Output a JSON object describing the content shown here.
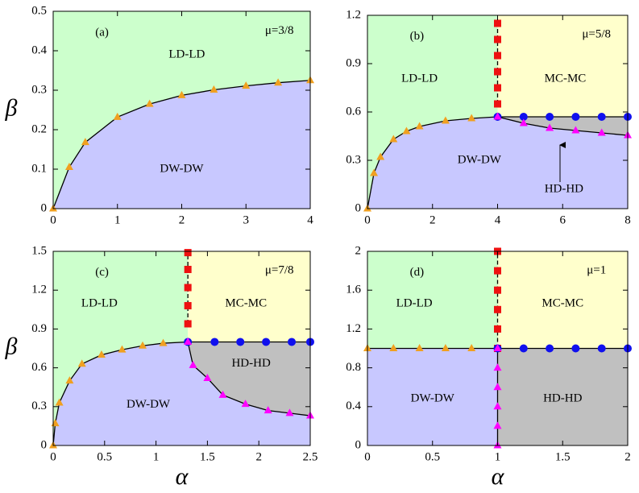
{
  "chart_data": [
    {
      "type": "phase",
      "panel_label": "(a)",
      "annotation": "μ=3/8",
      "ylabel": "β",
      "line_color": "#000000",
      "xlim": [
        0,
        4
      ],
      "ylim": [
        0,
        0.5
      ],
      "xticks": [
        0,
        1,
        2,
        3,
        4
      ],
      "yticks": [
        0,
        0.1,
        0.2,
        0.3,
        0.4,
        0.5
      ],
      "regions": [
        {
          "label": "LD-LD",
          "color": "#ccffcc",
          "x": [
            0,
            0,
            4,
            4
          ],
          "y": [
            0,
            0.5,
            0.5,
            0
          ]
        },
        {
          "label": "DW-DW",
          "color": "#c8c8ff",
          "x": [
            0,
            0.25,
            0.5,
            1,
            1.5,
            2,
            2.5,
            3,
            3.5,
            4,
            4
          ],
          "y": [
            0,
            0.105,
            0.168,
            0.232,
            0.265,
            0.287,
            0.301,
            0.311,
            0.319,
            0.325,
            0
          ]
        }
      ],
      "boundaries": [
        {
          "marker": "triangle",
          "color": "#f0a020",
          "dashed": false,
          "x": [
            0,
            0.25,
            0.5,
            1,
            1.5,
            2,
            2.5,
            3,
            3.5,
            4
          ],
          "y": [
            0,
            0.105,
            0.168,
            0.232,
            0.265,
            0.287,
            0.301,
            0.311,
            0.319,
            0.325
          ]
        }
      ]
    },
    {
      "type": "phase",
      "panel_label": "(b)",
      "annotation": "μ=5/8",
      "line_color": "#000000",
      "xlim": [
        0,
        8
      ],
      "ylim": [
        0,
        1.2
      ],
      "xticks": [
        0,
        2,
        4,
        6,
        8
      ],
      "yticks": [
        0,
        0.3,
        0.6,
        0.9,
        1.2
      ],
      "regions": [
        {
          "label": "LD-LD",
          "color": "#ccffcc",
          "x": [
            0,
            0,
            4,
            4
          ],
          "y": [
            0,
            1.2,
            1.2,
            0
          ]
        },
        {
          "label": "MC-MC",
          "color": "#ffffcc",
          "x": [
            4,
            4,
            8,
            8
          ],
          "y": [
            0.57,
            1.2,
            1.2,
            0.57
          ]
        },
        {
          "label": "HD-HD",
          "color": "#c0c0c0",
          "x": [
            4,
            4.8,
            5.6,
            6.4,
            7.2,
            8,
            8
          ],
          "y": [
            0.57,
            0.53,
            0.5,
            0.485,
            0.47,
            0.455,
            0.57
          ]
        },
        {
          "label": "DW-DW",
          "color": "#c8c8ff",
          "x": [
            0,
            0.2,
            0.4,
            0.8,
            1.2,
            1.6,
            2.4,
            3.2,
            4,
            4.8,
            5.6,
            6.4,
            7.2,
            8,
            8
          ],
          "y": [
            0,
            0.22,
            0.32,
            0.43,
            0.48,
            0.51,
            0.545,
            0.56,
            0.57,
            0.53,
            0.5,
            0.485,
            0.47,
            0.455,
            0
          ]
        }
      ],
      "boundaries": [
        {
          "marker": "triangle",
          "color": "#f0a020",
          "dashed": false,
          "x": [
            0,
            0.2,
            0.4,
            0.8,
            1.2,
            1.6,
            2.4,
            3.2,
            4
          ],
          "y": [
            0,
            0.22,
            0.32,
            0.43,
            0.48,
            0.51,
            0.545,
            0.56,
            0.57
          ]
        },
        {
          "marker": "square",
          "color": "#ee1111",
          "dashed": true,
          "x": [
            4,
            4,
            4,
            4,
            4,
            4
          ],
          "y": [
            0.65,
            0.75,
            0.85,
            0.95,
            1.05,
            1.15
          ]
        },
        {
          "marker": "circle",
          "color": "#1010ee",
          "dashed": false,
          "x": [
            4,
            4.8,
            5.6,
            6.4,
            7.2,
            8
          ],
          "y": [
            0.57,
            0.57,
            0.57,
            0.57,
            0.57,
            0.57
          ]
        },
        {
          "marker": "triangle",
          "color": "#ff00ff",
          "dashed": false,
          "x": [
            4,
            4.8,
            5.6,
            6.4,
            7.2,
            8
          ],
          "y": [
            0.57,
            0.53,
            0.5,
            0.485,
            0.47,
            0.455
          ]
        }
      ]
    },
    {
      "type": "phase",
      "panel_label": "(c)",
      "annotation": "μ=7/8",
      "xlabel": "α",
      "ylabel": "β",
      "line_color": "#000000",
      "xlim": [
        0,
        2.5
      ],
      "ylim": [
        0,
        1.5
      ],
      "xticks": [
        0,
        0.5,
        1,
        1.5,
        2,
        2.5
      ],
      "yticks": [
        0,
        0.3,
        0.6,
        0.9,
        1.2,
        1.5
      ],
      "regions": [
        {
          "label": "LD-LD",
          "color": "#ccffcc",
          "x": [
            0,
            0,
            1.31,
            1.31
          ],
          "y": [
            0,
            1.5,
            1.5,
            0
          ]
        },
        {
          "label": "MC-MC",
          "color": "#ffffcc",
          "x": [
            1.31,
            1.31,
            2.5,
            2.5
          ],
          "y": [
            0.8,
            1.5,
            1.5,
            0.8
          ]
        },
        {
          "label": "HD-HD",
          "color": "#c0c0c0",
          "x": [
            1.31,
            1.36,
            1.5,
            1.65,
            1.87,
            2.09,
            2.3,
            2.5,
            2.5
          ],
          "y": [
            0.8,
            0.62,
            0.52,
            0.39,
            0.32,
            0.27,
            0.25,
            0.23,
            0.8
          ]
        },
        {
          "label": "DW-DW",
          "color": "#c8c8ff",
          "x": [
            0,
            0.02,
            0.06,
            0.16,
            0.28,
            0.47,
            0.67,
            0.87,
            1.07,
            1.31,
            1.36,
            1.5,
            1.65,
            1.87,
            2.09,
            2.3,
            2.5,
            2.5
          ],
          "y": [
            0,
            0.17,
            0.33,
            0.5,
            0.63,
            0.7,
            0.74,
            0.77,
            0.79,
            0.8,
            0.62,
            0.52,
            0.39,
            0.32,
            0.27,
            0.25,
            0.23,
            0
          ]
        }
      ],
      "boundaries": [
        {
          "marker": "triangle",
          "color": "#f0a020",
          "dashed": false,
          "x": [
            0,
            0.02,
            0.06,
            0.16,
            0.28,
            0.47,
            0.67,
            0.87,
            1.07,
            1.31
          ],
          "y": [
            0,
            0.17,
            0.33,
            0.5,
            0.63,
            0.7,
            0.74,
            0.77,
            0.79,
            0.8
          ]
        },
        {
          "marker": "square",
          "color": "#ee1111",
          "dashed": true,
          "x": [
            1.31,
            1.31,
            1.31,
            1.31,
            1.31
          ],
          "y": [
            0.94,
            1.08,
            1.22,
            1.36,
            1.49
          ]
        },
        {
          "marker": "circle",
          "color": "#1010ee",
          "dashed": false,
          "x": [
            1.31,
            1.57,
            1.82,
            2.07,
            2.32,
            2.5
          ],
          "y": [
            0.8,
            0.8,
            0.8,
            0.8,
            0.8,
            0.8
          ]
        },
        {
          "marker": "triangle",
          "color": "#ff00ff",
          "dashed": false,
          "x": [
            1.31,
            1.36,
            1.5,
            1.65,
            1.87,
            2.09,
            2.3,
            2.5
          ],
          "y": [
            0.8,
            0.62,
            0.52,
            0.39,
            0.32,
            0.27,
            0.25,
            0.23
          ]
        }
      ]
    },
    {
      "type": "phase",
      "panel_label": "(d)",
      "annotation": "μ=1",
      "xlabel": "α",
      "line_color": "#000000",
      "xlim": [
        0,
        2
      ],
      "ylim": [
        0,
        2
      ],
      "xticks": [
        0,
        0.5,
        1,
        1.5,
        2
      ],
      "yticks": [
        0,
        0.4,
        0.8,
        1.2,
        1.6,
        2
      ],
      "regions": [
        {
          "label": "LD-LD",
          "color": "#ccffcc",
          "x": [
            0,
            0,
            1,
            1
          ],
          "y": [
            1,
            2,
            2,
            1
          ]
        },
        {
          "label": "MC-MC",
          "color": "#ffffcc",
          "x": [
            1,
            1,
            2,
            2
          ],
          "y": [
            1,
            2,
            2,
            1
          ]
        },
        {
          "label": "DW-DW",
          "color": "#c8c8ff",
          "x": [
            0,
            0,
            1,
            1
          ],
          "y": [
            0,
            1,
            1,
            0
          ]
        },
        {
          "label": "HD-HD",
          "color": "#c0c0c0",
          "x": [
            1,
            1,
            2,
            2
          ],
          "y": [
            0,
            1,
            1,
            0
          ]
        }
      ],
      "boundaries": [
        {
          "marker": "triangle",
          "color": "#f0a020",
          "dashed": false,
          "x": [
            0,
            0.2,
            0.4,
            0.6,
            0.8,
            1
          ],
          "y": [
            1,
            1,
            1,
            1,
            1,
            1
          ]
        },
        {
          "marker": "square",
          "color": "#ee1111",
          "dashed": true,
          "x": [
            1,
            1,
            1,
            1,
            1,
            1
          ],
          "y": [
            1,
            1.2,
            1.4,
            1.6,
            1.8,
            2
          ]
        },
        {
          "marker": "circle",
          "color": "#1010ee",
          "dashed": false,
          "x": [
            1,
            1.2,
            1.4,
            1.6,
            1.8,
            2
          ],
          "y": [
            1,
            1,
            1,
            1,
            1,
            1
          ]
        },
        {
          "marker": "triangle",
          "color": "#ff00ff",
          "dashed": false,
          "x": [
            1,
            1,
            1,
            1,
            1,
            1
          ],
          "y": [
            0,
            0.2,
            0.4,
            0.6,
            0.8,
            1
          ]
        }
      ]
    }
  ]
}
